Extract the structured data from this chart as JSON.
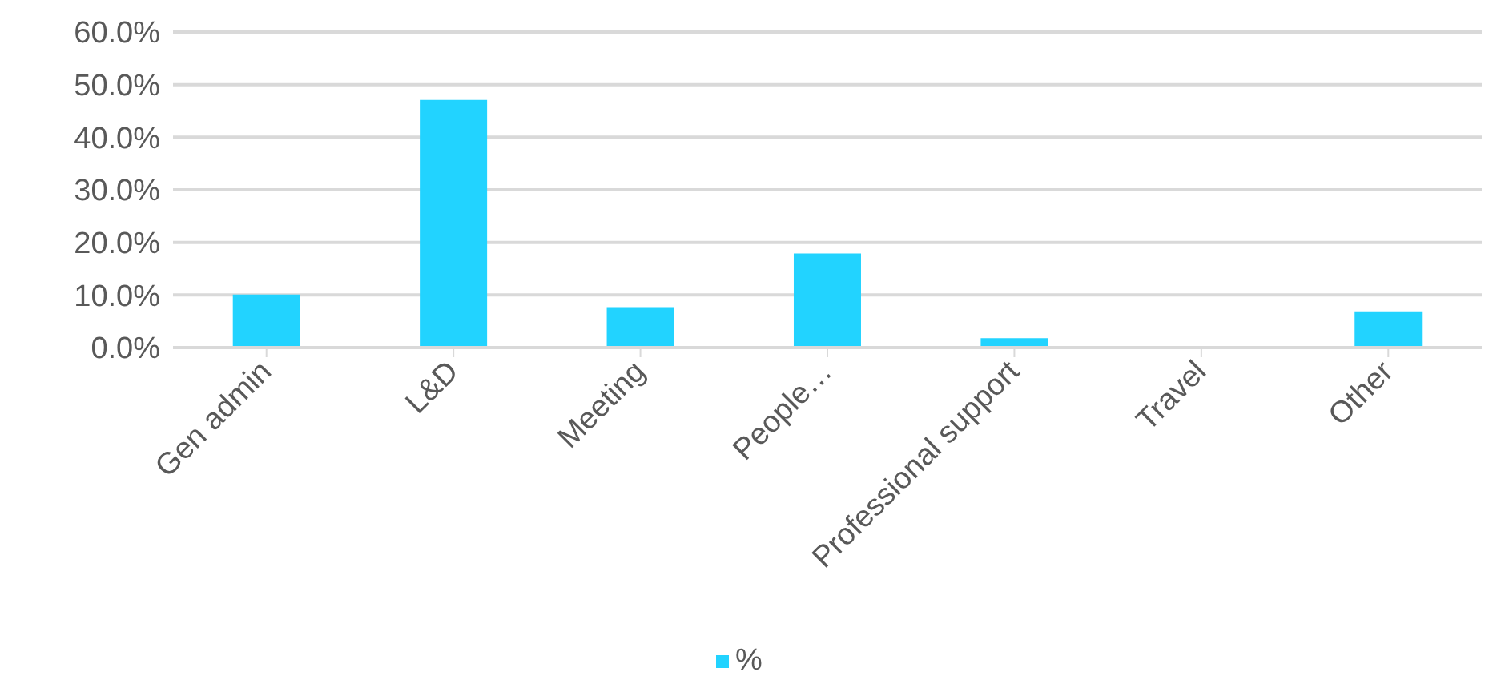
{
  "chart_data": {
    "type": "bar",
    "categories": [
      "Gen admin",
      "L&D",
      "Meeting",
      "People…",
      "Professional support",
      "Travel",
      "Other"
    ],
    "series": [
      {
        "name": "%",
        "color": "#22d3ff",
        "values": [
          10.1,
          47.1,
          7.7,
          17.9,
          1.8,
          0,
          6.9
        ]
      }
    ],
    "ylim": [
      0,
      60
    ],
    "yticks": [
      {
        "value": 0,
        "label": "0.0%"
      },
      {
        "value": 10,
        "label": "10.0%"
      },
      {
        "value": 20,
        "label": "20.0%"
      },
      {
        "value": 30,
        "label": "30.0%"
      },
      {
        "value": 40,
        "label": "40.0%"
      },
      {
        "value": 50,
        "label": "50.0%"
      },
      {
        "value": 60,
        "label": "60.0%"
      }
    ],
    "grid": "y",
    "legend": "bottom"
  }
}
